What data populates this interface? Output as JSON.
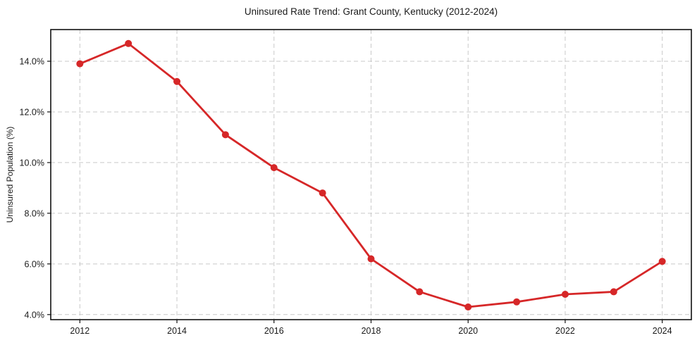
{
  "figure": {
    "background": "#ffffff"
  },
  "chart_data": {
    "type": "line",
    "title": "Uninsured Rate Trend: Grant County, Kentucky (2012-2024)",
    "xlabel": "",
    "ylabel": "Uninsured Population (%)",
    "x": [
      2012,
      2013,
      2014,
      2015,
      2016,
      2017,
      2018,
      2019,
      2020,
      2021,
      2022,
      2023,
      2024
    ],
    "series": [
      {
        "name": "Uninsured Population (%)",
        "values": [
          13.9,
          14.7,
          13.2,
          11.1,
          9.8,
          8.8,
          6.2,
          4.9,
          4.3,
          4.5,
          4.8,
          4.9,
          6.1
        ]
      }
    ],
    "xlim": [
      2011.4,
      2024.6
    ],
    "ylim": [
      3.8,
      15.25
    ],
    "x_ticks": [
      2012,
      2014,
      2016,
      2018,
      2020,
      2022,
      2024
    ],
    "x_tick_labels": [
      "2012",
      "2014",
      "2016",
      "2018",
      "2020",
      "2022",
      "2024"
    ],
    "y_ticks": [
      4,
      6,
      8,
      10,
      12,
      14
    ],
    "y_tick_labels": [
      "4.0%",
      "6.0%",
      "8.0%",
      "10.0%",
      "12.0%",
      "14.0%"
    ],
    "grid": true,
    "grid_style": "dashed",
    "legend_position": "none",
    "line_color": "#d62728",
    "marker": "circle",
    "grid_color": "#c9c9c9",
    "spine_color": "#111111",
    "text_color": "#1a1a1a"
  }
}
